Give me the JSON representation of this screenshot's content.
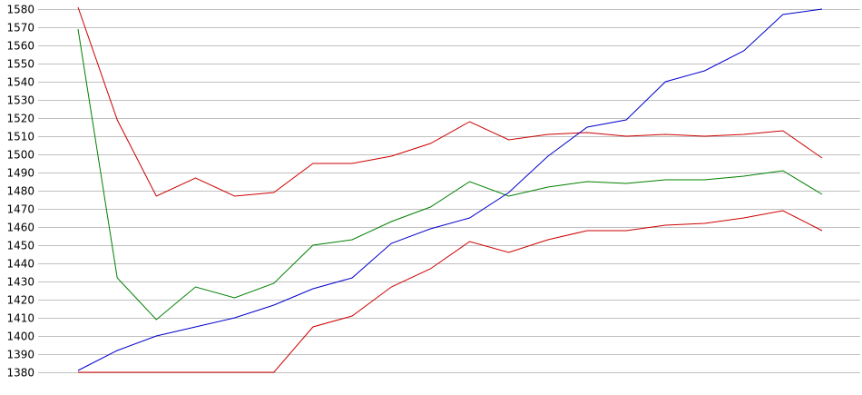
{
  "chart_data": {
    "type": "line",
    "title": "",
    "xlabel": "",
    "ylabel": "",
    "ylim": [
      1380,
      1580
    ],
    "grid": true,
    "x": [
      1,
      2,
      3,
      4,
      5,
      6,
      7,
      8,
      9,
      10,
      11,
      12,
      13,
      14,
      15,
      16,
      17,
      18,
      19,
      20
    ],
    "yticks": [
      "1380",
      "1390",
      "1400",
      "1410",
      "1420",
      "1430",
      "1440",
      "1450",
      "1460",
      "1470",
      "1480",
      "1490",
      "1500",
      "1510",
      "1520",
      "1530",
      "1540",
      "1550",
      "1560",
      "1570",
      "1580"
    ],
    "series": [
      {
        "color": "#cc0000",
        "values": [
          1581,
          1519,
          1477,
          1487,
          1477,
          1479,
          1495,
          1495,
          1499,
          1506,
          1518,
          1508,
          1511,
          1512,
          1510,
          1511,
          1510,
          1511,
          1513,
          1498
        ]
      },
      {
        "color": "#008000",
        "values": [
          1569,
          1432,
          1409,
          1427,
          1421,
          1429,
          1450,
          1453,
          1463,
          1471,
          1485,
          1477,
          1482,
          1485,
          1484,
          1486,
          1486,
          1488,
          1491,
          1478
        ]
      },
      {
        "color": "#0000cc",
        "values": [
          1381,
          1392,
          1400,
          1405,
          1410,
          1417,
          1426,
          1432,
          1451,
          1459,
          1465,
          1479,
          1499,
          1515,
          1519,
          1540,
          1546,
          1557,
          1577,
          1580
        ]
      },
      {
        "color": "#cc0000",
        "values": [
          1380,
          1380,
          1380,
          1380,
          1380,
          1380,
          1405,
          1411,
          1427,
          1437,
          1452,
          1446,
          1453,
          1458,
          1458,
          1461,
          1462,
          1465,
          1469,
          1458
        ]
      }
    ]
  }
}
